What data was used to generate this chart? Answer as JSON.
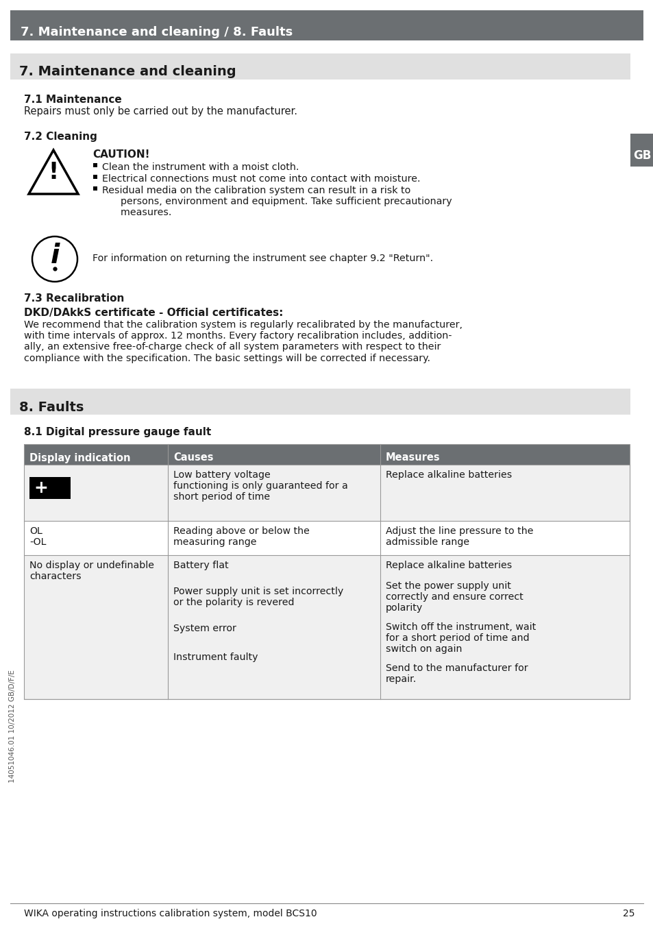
{
  "page_bg": "#ffffff",
  "header_bg": "#6b6f72",
  "header_text": "7. Maintenance and cleaning / 8. Faults",
  "header_text_color": "#ffffff",
  "section_bg": "#e0e0e0",
  "section7_title": "7. Maintenance and cleaning",
  "section8_title": "8. Faults",
  "body_text_color": "#1a1a1a",
  "gb_bg": "#6b6f72",
  "gb_text": "GB",
  "table_header_bg": "#6b6f72",
  "table_header_text_color": "#ffffff",
  "table_row1_bg": "#f0f0f0",
  "table_row2_bg": "#ffffff",
  "table_row3_bg": "#f0f0f0",
  "footer_text": "WIKA operating instructions calibration system, model BCS10",
  "footer_page": "25",
  "footer_left_text": "14051046.01 10/2012 GB/D/F/E",
  "table_border_color": "#999999"
}
